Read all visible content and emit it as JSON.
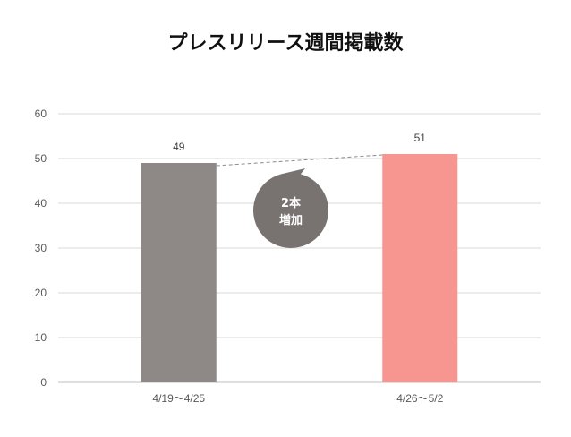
{
  "chart_data": {
    "type": "bar",
    "title": "プレスリリース週間掲載数",
    "categories": [
      "4/19～4/25",
      "4/26～5/2"
    ],
    "values": [
      49,
      51
    ],
    "data_labels": [
      "49",
      "51"
    ],
    "bar_colors": [
      "#8e8886",
      "#f79690"
    ],
    "ylim": [
      0,
      60
    ],
    "yticks": [
      "0",
      "10",
      "20",
      "30",
      "40",
      "50",
      "60"
    ],
    "grid": true,
    "legend": "none",
    "callout": {
      "line1": "2本",
      "line2": "増加",
      "color": "#787371"
    }
  }
}
